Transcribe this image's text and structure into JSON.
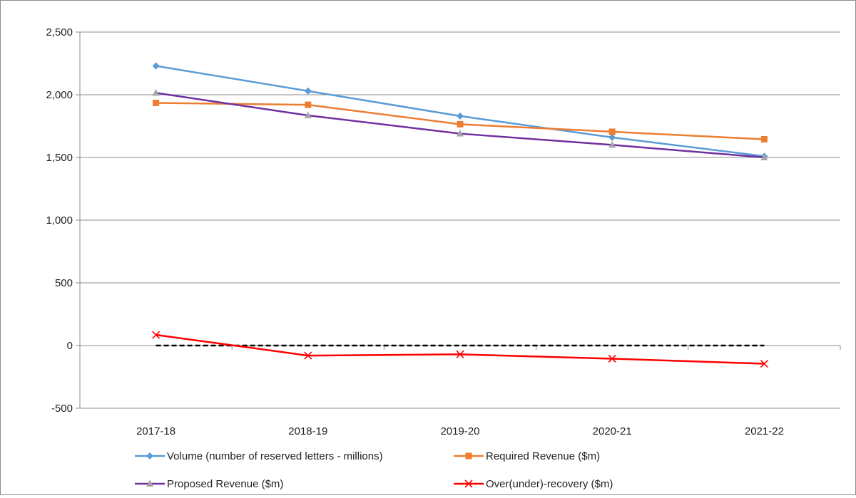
{
  "chart_data": {
    "type": "line",
    "categories": [
      "2017-18",
      "2018-19",
      "2019-20",
      "2020-21",
      "2021-22"
    ],
    "ylim": [
      -500,
      2500
    ],
    "yticks": [
      -500,
      0,
      500,
      1000,
      1500,
      2000,
      2500
    ],
    "ytick_labels": [
      "-500",
      "0",
      "500",
      "1,000",
      "1,500",
      "2,000",
      "2,500"
    ],
    "grid": "horizontal",
    "legend_position": "bottom",
    "zero_line": {
      "style": "dashed",
      "color": "#000000"
    },
    "series": [
      {
        "name": "Volume (number of reserved letters - millions)",
        "values": [
          2230,
          2030,
          1830,
          1660,
          1510
        ],
        "color": "#5b9bd5",
        "marker": "diamond"
      },
      {
        "name": "Required Revenue ($m)",
        "values": [
          1935,
          1920,
          1765,
          1705,
          1645
        ],
        "color": "#ed7d31",
        "marker": "square"
      },
      {
        "name": "Proposed Revenue ($m)",
        "values": [
          2015,
          1835,
          1690,
          1600,
          1500
        ],
        "color": "#7030a0",
        "marker": "triangle",
        "marker_color": "#a5a5a5"
      },
      {
        "name": "Over(under)-recovery ($m)",
        "values": [
          85,
          -80,
          -70,
          -105,
          -145
        ],
        "color": "#ff0000",
        "marker": "x"
      }
    ]
  }
}
